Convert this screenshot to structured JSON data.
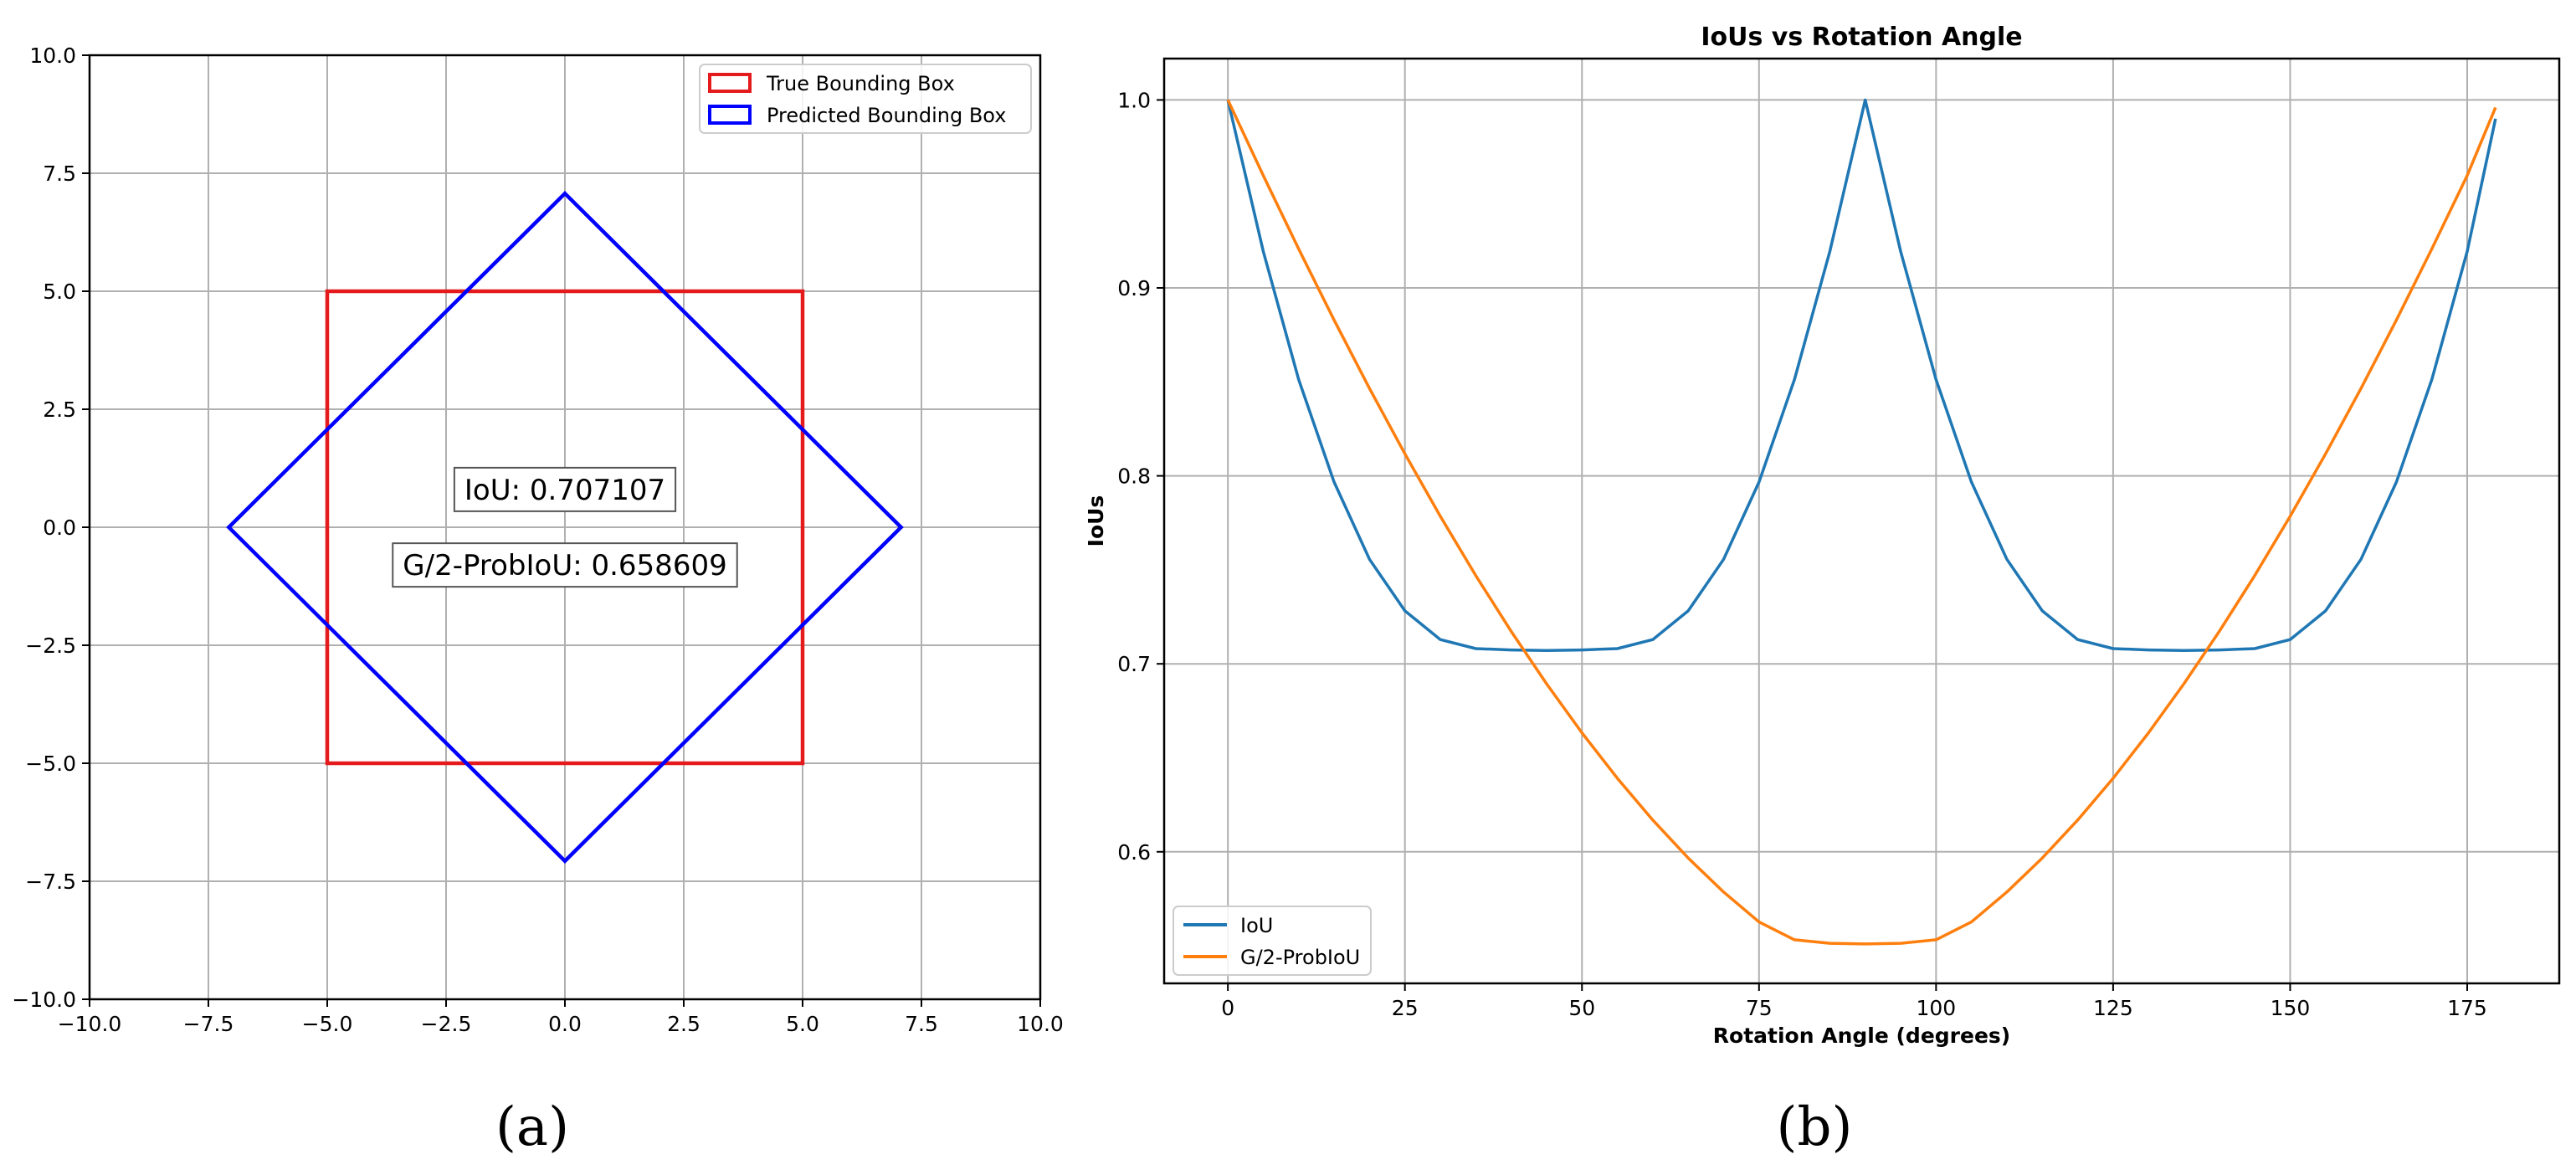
{
  "chart_data": [
    {
      "type": "box-overlay",
      "panel_label": "(a)",
      "title": "",
      "xlabel": "",
      "ylabel": "",
      "xlim": [
        -10,
        10
      ],
      "ylim": [
        -10,
        10
      ],
      "xticks": [
        -10,
        -7.5,
        -5,
        -2.5,
        0,
        2.5,
        5,
        7.5,
        10
      ],
      "yticks": [
        -10,
        -7.5,
        -5,
        -2.5,
        0,
        2.5,
        5,
        7.5,
        10
      ],
      "xtick_labels": [
        "−10.0",
        "−7.5",
        "−5.0",
        "−2.5",
        "0.0",
        "2.5",
        "5.0",
        "7.5",
        "10.0"
      ],
      "ytick_labels": [
        "−10.0",
        "−7.5",
        "−5.0",
        "−2.5",
        "0.0",
        "2.5",
        "5.0",
        "7.5",
        "10.0"
      ],
      "grid": true,
      "legend_position": "top-right",
      "boxes": [
        {
          "name": "True Bounding Box",
          "color": "#e41a1c",
          "points": [
            [
              -5,
              -5
            ],
            [
              5,
              -5
            ],
            [
              5,
              5
            ],
            [
              -5,
              5
            ]
          ]
        },
        {
          "name": "Predicted Bounding Box",
          "color": "#0000ff",
          "points": [
            [
              0,
              7.071
            ],
            [
              7.071,
              0
            ],
            [
              0,
              -7.071
            ],
            [
              -7.071,
              0
            ]
          ]
        }
      ],
      "annotations": [
        {
          "text": "IoU: 0.707107",
          "x": 0,
          "y": 0.8
        },
        {
          "text": "G/2-ProbIoU: 0.658609",
          "x": 0,
          "y": -0.8
        }
      ]
    },
    {
      "type": "line",
      "panel_label": "(b)",
      "title": "IoUs vs Rotation Angle",
      "xlabel": "Rotation Angle (degrees)",
      "ylabel": "IoUs",
      "xlim": [
        -9,
        188
      ],
      "ylim": [
        0.53,
        1.022
      ],
      "xticks": [
        0,
        25,
        50,
        75,
        100,
        125,
        150,
        175
      ],
      "yticks": [
        0.6,
        0.7,
        0.8,
        0.9,
        1.0
      ],
      "xtick_labels": [
        "0",
        "25",
        "50",
        "75",
        "100",
        "125",
        "150",
        "175"
      ],
      "ytick_labels": [
        "0.6",
        "0.7",
        "0.8",
        "0.9",
        "1.0"
      ],
      "grid": true,
      "legend_position": "lower-left",
      "x": [
        0,
        5,
        10,
        15,
        20,
        25,
        30,
        35,
        40,
        45,
        50,
        55,
        60,
        65,
        70,
        75,
        80,
        85,
        90,
        95,
        100,
        105,
        110,
        115,
        120,
        125,
        130,
        135,
        140,
        145,
        150,
        155,
        160,
        165,
        170,
        175,
        179
      ],
      "series": [
        {
          "name": "IoU",
          "color": "#1f77b4",
          "values": [
            1.0,
            0.9194,
            0.8512,
            0.7967,
            0.7556,
            0.7282,
            0.7129,
            0.7081,
            0.7074,
            0.7071,
            0.7074,
            0.7081,
            0.7129,
            0.7282,
            0.7556,
            0.7967,
            0.8512,
            0.9194,
            1.0,
            0.9194,
            0.8512,
            0.7967,
            0.7556,
            0.7282,
            0.7129,
            0.7081,
            0.7074,
            0.7071,
            0.7074,
            0.7081,
            0.7129,
            0.7282,
            0.7556,
            0.7967,
            0.8512,
            0.9194,
            0.99
          ]
        },
        {
          "name": "G/2-ProbIoU",
          "color": "#ff7f0e",
          "values": [
            1.0,
            0.9598,
            0.9207,
            0.8829,
            0.8465,
            0.8117,
            0.7785,
            0.747,
            0.7173,
            0.6894,
            0.6633,
            0.6391,
            0.6169,
            0.5967,
            0.5786,
            0.5627,
            0.5532,
            0.5513,
            0.551,
            0.5513,
            0.5532,
            0.5627,
            0.5786,
            0.5967,
            0.6169,
            0.6391,
            0.6633,
            0.6894,
            0.7173,
            0.747,
            0.7785,
            0.8117,
            0.8465,
            0.8829,
            0.9207,
            0.9598,
            0.996
          ]
        }
      ]
    }
  ]
}
